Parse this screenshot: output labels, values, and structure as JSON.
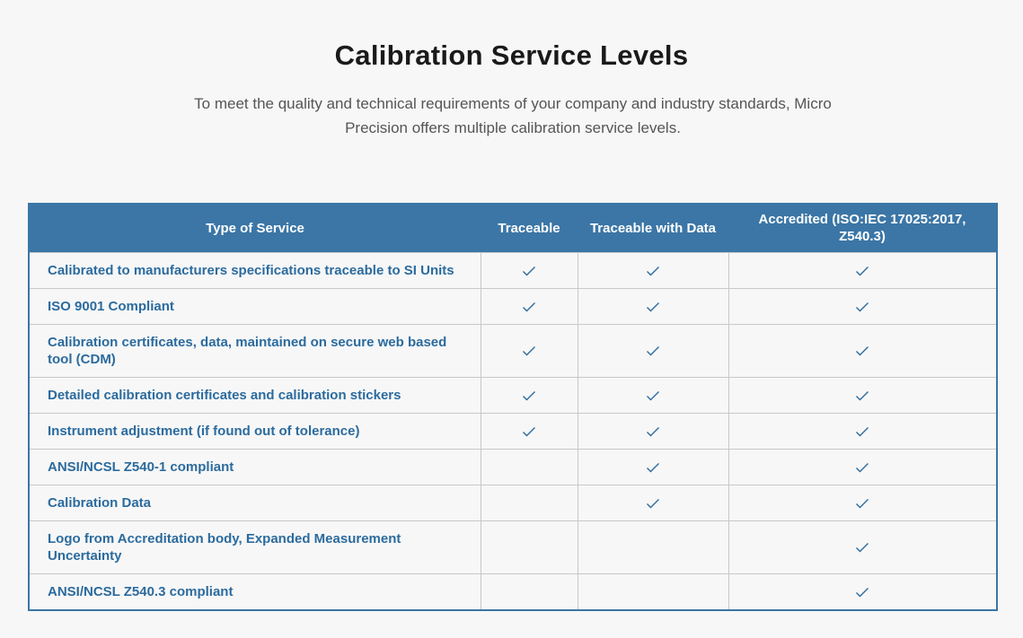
{
  "header": {
    "title": "Calibration Service Levels",
    "intro": "To meet the quality and technical requirements of your company and industry standards, Micro Precision offers multiple calibration service levels."
  },
  "table": {
    "columns": [
      "Type of Service",
      "Traceable",
      "Traceable with Data",
      "Accredited (ISO:IEC 17025:2017, Z540.3)"
    ],
    "rows": [
      {
        "label": "Calibrated to manufacturers specifications traceable to SI Units",
        "checks": [
          true,
          true,
          true
        ]
      },
      {
        "label": "ISO 9001 Compliant",
        "checks": [
          true,
          true,
          true
        ]
      },
      {
        "label": "Calibration certificates, data, maintained on secure web based tool (CDM)",
        "checks": [
          true,
          true,
          true
        ]
      },
      {
        "label": "Detailed calibration certificates and calibration stickers",
        "checks": [
          true,
          true,
          true
        ]
      },
      {
        "label": "Instrument adjustment (if found out of tolerance)",
        "checks": [
          true,
          true,
          true
        ]
      },
      {
        "label": "ANSI/NCSL Z540-1 compliant",
        "checks": [
          false,
          true,
          true
        ]
      },
      {
        "label": "Calibration Data",
        "checks": [
          false,
          true,
          true
        ]
      },
      {
        "label": "Logo from Accreditation body, Expanded Measurement Uncertainty",
        "checks": [
          false,
          false,
          true
        ]
      },
      {
        "label": "ANSI/NCSL Z540.3 compliant",
        "checks": [
          false,
          false,
          true
        ]
      }
    ],
    "check_icon": "checkmark-icon",
    "colors": {
      "header_bg": "#3b76a6",
      "row_text": "#2b6b9e",
      "check": "#2b6b9e"
    }
  }
}
